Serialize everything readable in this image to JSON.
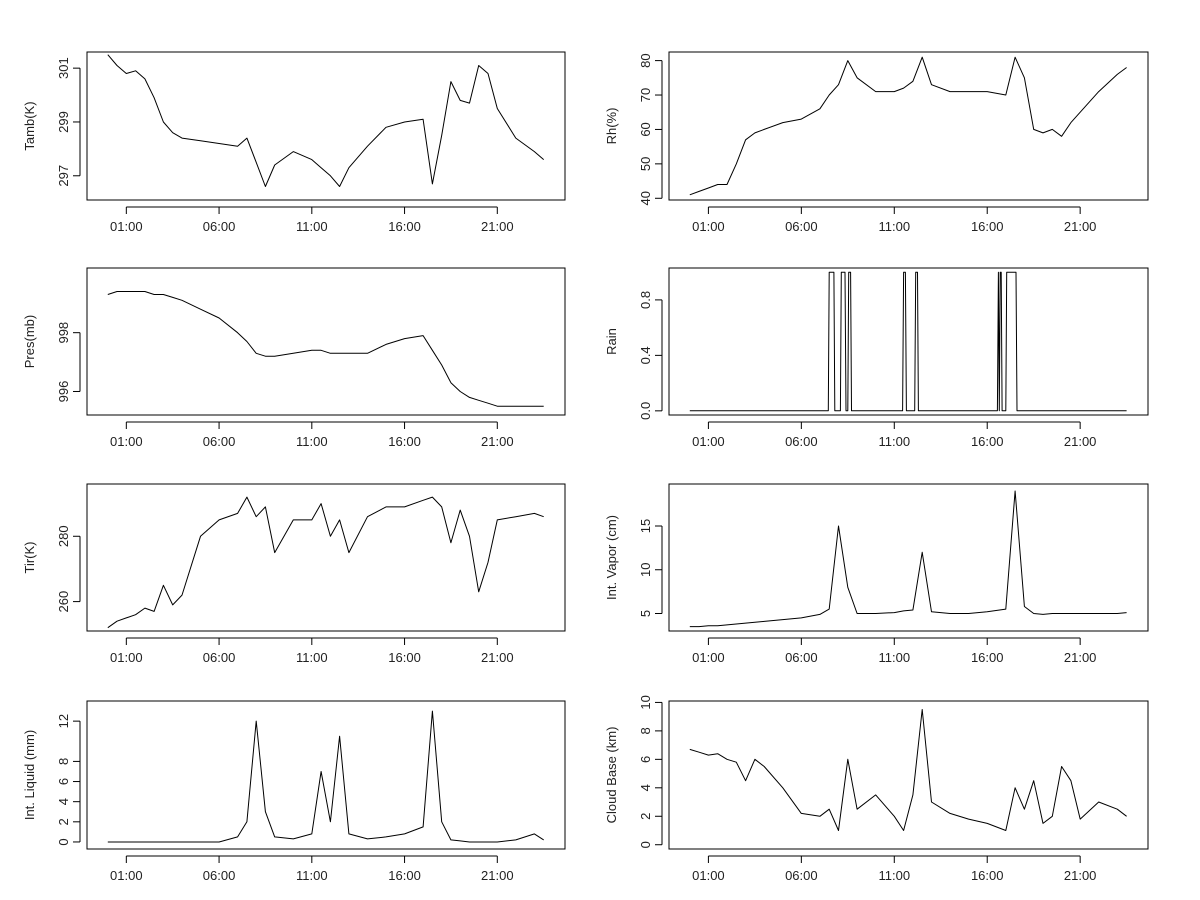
{
  "chart_data": [
    {
      "type": "line",
      "ylabel": "Tamb(K)",
      "x_ticks": [
        "01:00",
        "06:00",
        "11:00",
        "16:00",
        "21:00"
      ],
      "y_ticks": [
        297,
        299,
        301
      ],
      "ylim": [
        296.1,
        301.6
      ],
      "x": [
        0,
        0.5,
        1,
        1.5,
        2,
        2.5,
        3,
        3.5,
        4,
        5,
        6,
        7,
        7.5,
        8,
        8.5,
        9,
        10,
        11,
        11.5,
        12,
        12.5,
        13,
        14,
        15,
        16,
        17,
        17.5,
        18,
        18.5,
        19,
        19.5,
        20,
        20.5,
        21,
        22,
        23,
        23.5
      ],
      "y": [
        301.5,
        301.1,
        300.8,
        300.9,
        300.6,
        299.9,
        299.0,
        298.6,
        298.4,
        298.3,
        298.2,
        298.1,
        298.4,
        297.5,
        296.6,
        297.4,
        297.9,
        297.6,
        297.3,
        297.0,
        296.6,
        297.3,
        298.1,
        298.8,
        299.0,
        299.1,
        296.7,
        298.5,
        300.5,
        299.8,
        299.7,
        301.1,
        300.8,
        299.5,
        298.4,
        297.9,
        297.6
      ]
    },
    {
      "type": "line",
      "ylabel": "Rh(%)",
      "x_ticks": [
        "01:00",
        "06:00",
        "11:00",
        "16:00",
        "21:00"
      ],
      "y_ticks": [
        40,
        50,
        60,
        70,
        80
      ],
      "ylim": [
        39.5,
        82.5
      ],
      "x": [
        0,
        0.5,
        1,
        1.5,
        2,
        2.5,
        3,
        3.5,
        4,
        5,
        6,
        7,
        7.5,
        8,
        8.5,
        9,
        10,
        11,
        11.5,
        12,
        12.5,
        13,
        14,
        15,
        16,
        17,
        17.5,
        18,
        18.5,
        19,
        19.5,
        20,
        20.5,
        21,
        22,
        23,
        23.5
      ],
      "y": [
        41,
        42,
        43,
        44,
        44,
        50,
        57,
        59,
        60,
        62,
        63,
        66,
        70,
        73,
        80,
        75,
        71,
        71,
        72,
        74,
        81,
        73,
        71,
        71,
        71,
        70,
        81,
        75,
        60,
        59,
        60,
        58,
        62,
        65,
        71,
        76,
        78
      ]
    },
    {
      "type": "line",
      "ylabel": "Pres(mb)",
      "x_ticks": [
        "01:00",
        "06:00",
        "11:00",
        "16:00",
        "21:00"
      ],
      "y_ticks": [
        996,
        998
      ],
      "ylim": [
        995.2,
        1000.2
      ],
      "x": [
        0,
        0.5,
        1,
        1.5,
        2,
        2.5,
        3,
        3.5,
        4,
        5,
        6,
        7,
        7.5,
        8,
        8.5,
        9,
        10,
        11,
        11.5,
        12,
        12.5,
        13,
        14,
        15,
        16,
        17,
        17.5,
        18,
        18.5,
        19,
        19.5,
        20,
        20.5,
        21,
        22,
        23,
        23.5
      ],
      "y": [
        999.3,
        999.4,
        999.4,
        999.4,
        999.4,
        999.3,
        999.3,
        999.2,
        999.1,
        998.8,
        998.5,
        998.0,
        997.7,
        997.3,
        997.2,
        997.2,
        997.3,
        997.4,
        997.4,
        997.3,
        997.3,
        997.3,
        997.3,
        997.6,
        997.8,
        997.9,
        997.4,
        996.9,
        996.3,
        996.0,
        995.8,
        995.7,
        995.6,
        995.5,
        995.5,
        995.5,
        995.5
      ]
    },
    {
      "type": "line",
      "ylabel": "Rain",
      "x_ticks": [
        "01:00",
        "06:00",
        "11:00",
        "16:00",
        "21:00"
      ],
      "y_ticks": [
        "0.0",
        "0.4",
        "0.8"
      ],
      "ylim": [
        -0.03,
        1.03
      ],
      "x": [
        0,
        7.45,
        7.5,
        7.75,
        7.8,
        8.1,
        8.15,
        8.35,
        8.4,
        8.5,
        8.55,
        8.65,
        8.7,
        11.45,
        11.5,
        11.6,
        11.65,
        12.1,
        12.15,
        12.25,
        12.3,
        16.55,
        16.6,
        16.65,
        16.7,
        16.75,
        16.8,
        17.0,
        17.05,
        17.55,
        17.6,
        23.5
      ],
      "y": [
        0,
        0,
        1,
        1,
        0,
        0,
        1,
        1,
        0,
        0,
        1,
        1,
        0,
        0,
        1,
        1,
        0,
        0,
        1,
        1,
        0,
        0,
        1,
        0,
        1,
        1,
        0,
        0,
        1,
        1,
        0,
        0
      ]
    },
    {
      "type": "line",
      "ylabel": "Tir(K)",
      "x_ticks": [
        "01:00",
        "06:00",
        "11:00",
        "16:00",
        "21:00"
      ],
      "y_ticks": [
        260,
        280
      ],
      "ylim": [
        251,
        296
      ],
      "x": [
        0,
        0.5,
        1,
        1.5,
        2,
        2.5,
        3,
        3.5,
        4,
        5,
        6,
        7,
        7.5,
        8,
        8.5,
        9,
        10,
        11,
        11.5,
        12,
        12.5,
        13,
        14,
        15,
        16,
        17,
        17.5,
        18,
        18.5,
        19,
        19.5,
        20,
        20.5,
        21,
        22,
        23,
        23.5
      ],
      "y": [
        252,
        254,
        255,
        256,
        258,
        257,
        265,
        259,
        262,
        280,
        285,
        287,
        292,
        286,
        289,
        275,
        285,
        285,
        290,
        280,
        285,
        275,
        286,
        289,
        289,
        291,
        292,
        289,
        278,
        288,
        280,
        263,
        272,
        285,
        286,
        287,
        286
      ]
    },
    {
      "type": "line",
      "ylabel": "Int. Vapor (cm)",
      "x_ticks": [
        "01:00",
        "06:00",
        "11:00",
        "16:00",
        "21:00"
      ],
      "y_ticks": [
        5,
        10,
        15
      ],
      "ylim": [
        3.0,
        19.8
      ],
      "x": [
        0,
        0.5,
        1,
        1.5,
        2,
        2.5,
        3,
        3.5,
        4,
        5,
        6,
        7,
        7.5,
        8,
        8.5,
        9,
        10,
        11,
        11.5,
        12,
        12.5,
        13,
        14,
        15,
        16,
        17,
        17.5,
        18,
        18.5,
        19,
        19.5,
        20,
        20.5,
        21,
        22,
        23,
        23.5
      ],
      "y": [
        3.5,
        3.5,
        3.6,
        3.6,
        3.7,
        3.8,
        3.9,
        4.0,
        4.1,
        4.3,
        4.5,
        4.9,
        5.5,
        15.0,
        8.0,
        5.0,
        5.0,
        5.1,
        5.3,
        5.4,
        12.0,
        5.2,
        5.0,
        5.0,
        5.2,
        5.5,
        19.0,
        5.8,
        5.0,
        4.9,
        5.0,
        5.0,
        5.0,
        5.0,
        5.0,
        5.0,
        5.1
      ]
    },
    {
      "type": "line",
      "ylabel": "Int. Liquid (mm)",
      "x_ticks": [
        "01:00",
        "06:00",
        "11:00",
        "16:00",
        "21:00"
      ],
      "y_ticks": [
        0,
        2,
        4,
        6,
        8,
        12
      ],
      "ylim": [
        -0.7,
        14.0
      ],
      "x": [
        0,
        0.5,
        1,
        1.5,
        2,
        2.5,
        3,
        3.5,
        4,
        5,
        6,
        7,
        7.5,
        8,
        8.5,
        9,
        10,
        11,
        11.5,
        12,
        12.5,
        13,
        14,
        15,
        16,
        17,
        17.5,
        18,
        18.5,
        19,
        19.5,
        20,
        20.5,
        21,
        22,
        23,
        23.5
      ],
      "y": [
        0,
        0,
        0,
        0,
        0,
        0,
        0,
        0,
        0,
        0,
        0,
        0.5,
        2.0,
        12.0,
        3.0,
        0.5,
        0.3,
        0.8,
        7.0,
        2.0,
        10.5,
        0.8,
        0.3,
        0.5,
        0.8,
        1.5,
        13.0,
        2.0,
        0.2,
        0.1,
        0,
        0,
        0,
        0,
        0.2,
        0.8,
        0.2
      ]
    },
    {
      "type": "line",
      "ylabel": "Cloud Base (km)",
      "x_ticks": [
        "01:00",
        "06:00",
        "11:00",
        "16:00",
        "21:00"
      ],
      "y_ticks": [
        0,
        2,
        4,
        6,
        8,
        10
      ],
      "ylim": [
        -0.3,
        10.1
      ],
      "x": [
        0,
        0.5,
        1,
        1.5,
        2,
        2.5,
        3,
        3.5,
        4,
        5,
        6,
        7,
        7.5,
        8,
        8.5,
        9,
        10,
        11,
        11.5,
        12,
        12.5,
        13,
        14,
        15,
        16,
        17,
        17.5,
        18,
        18.5,
        19,
        19.5,
        20,
        20.5,
        21,
        22,
        23,
        23.5
      ],
      "y": [
        6.7,
        6.5,
        6.3,
        6.4,
        6.0,
        5.8,
        4.5,
        6.0,
        5.5,
        4.0,
        2.2,
        2.0,
        2.5,
        1.0,
        6.0,
        2.5,
        3.5,
        2.0,
        1.0,
        3.5,
        9.5,
        3.0,
        2.2,
        1.8,
        1.5,
        1.0,
        4.0,
        2.5,
        4.5,
        1.5,
        2.0,
        5.5,
        4.5,
        1.8,
        3.0,
        2.5,
        2.0
      ]
    }
  ]
}
